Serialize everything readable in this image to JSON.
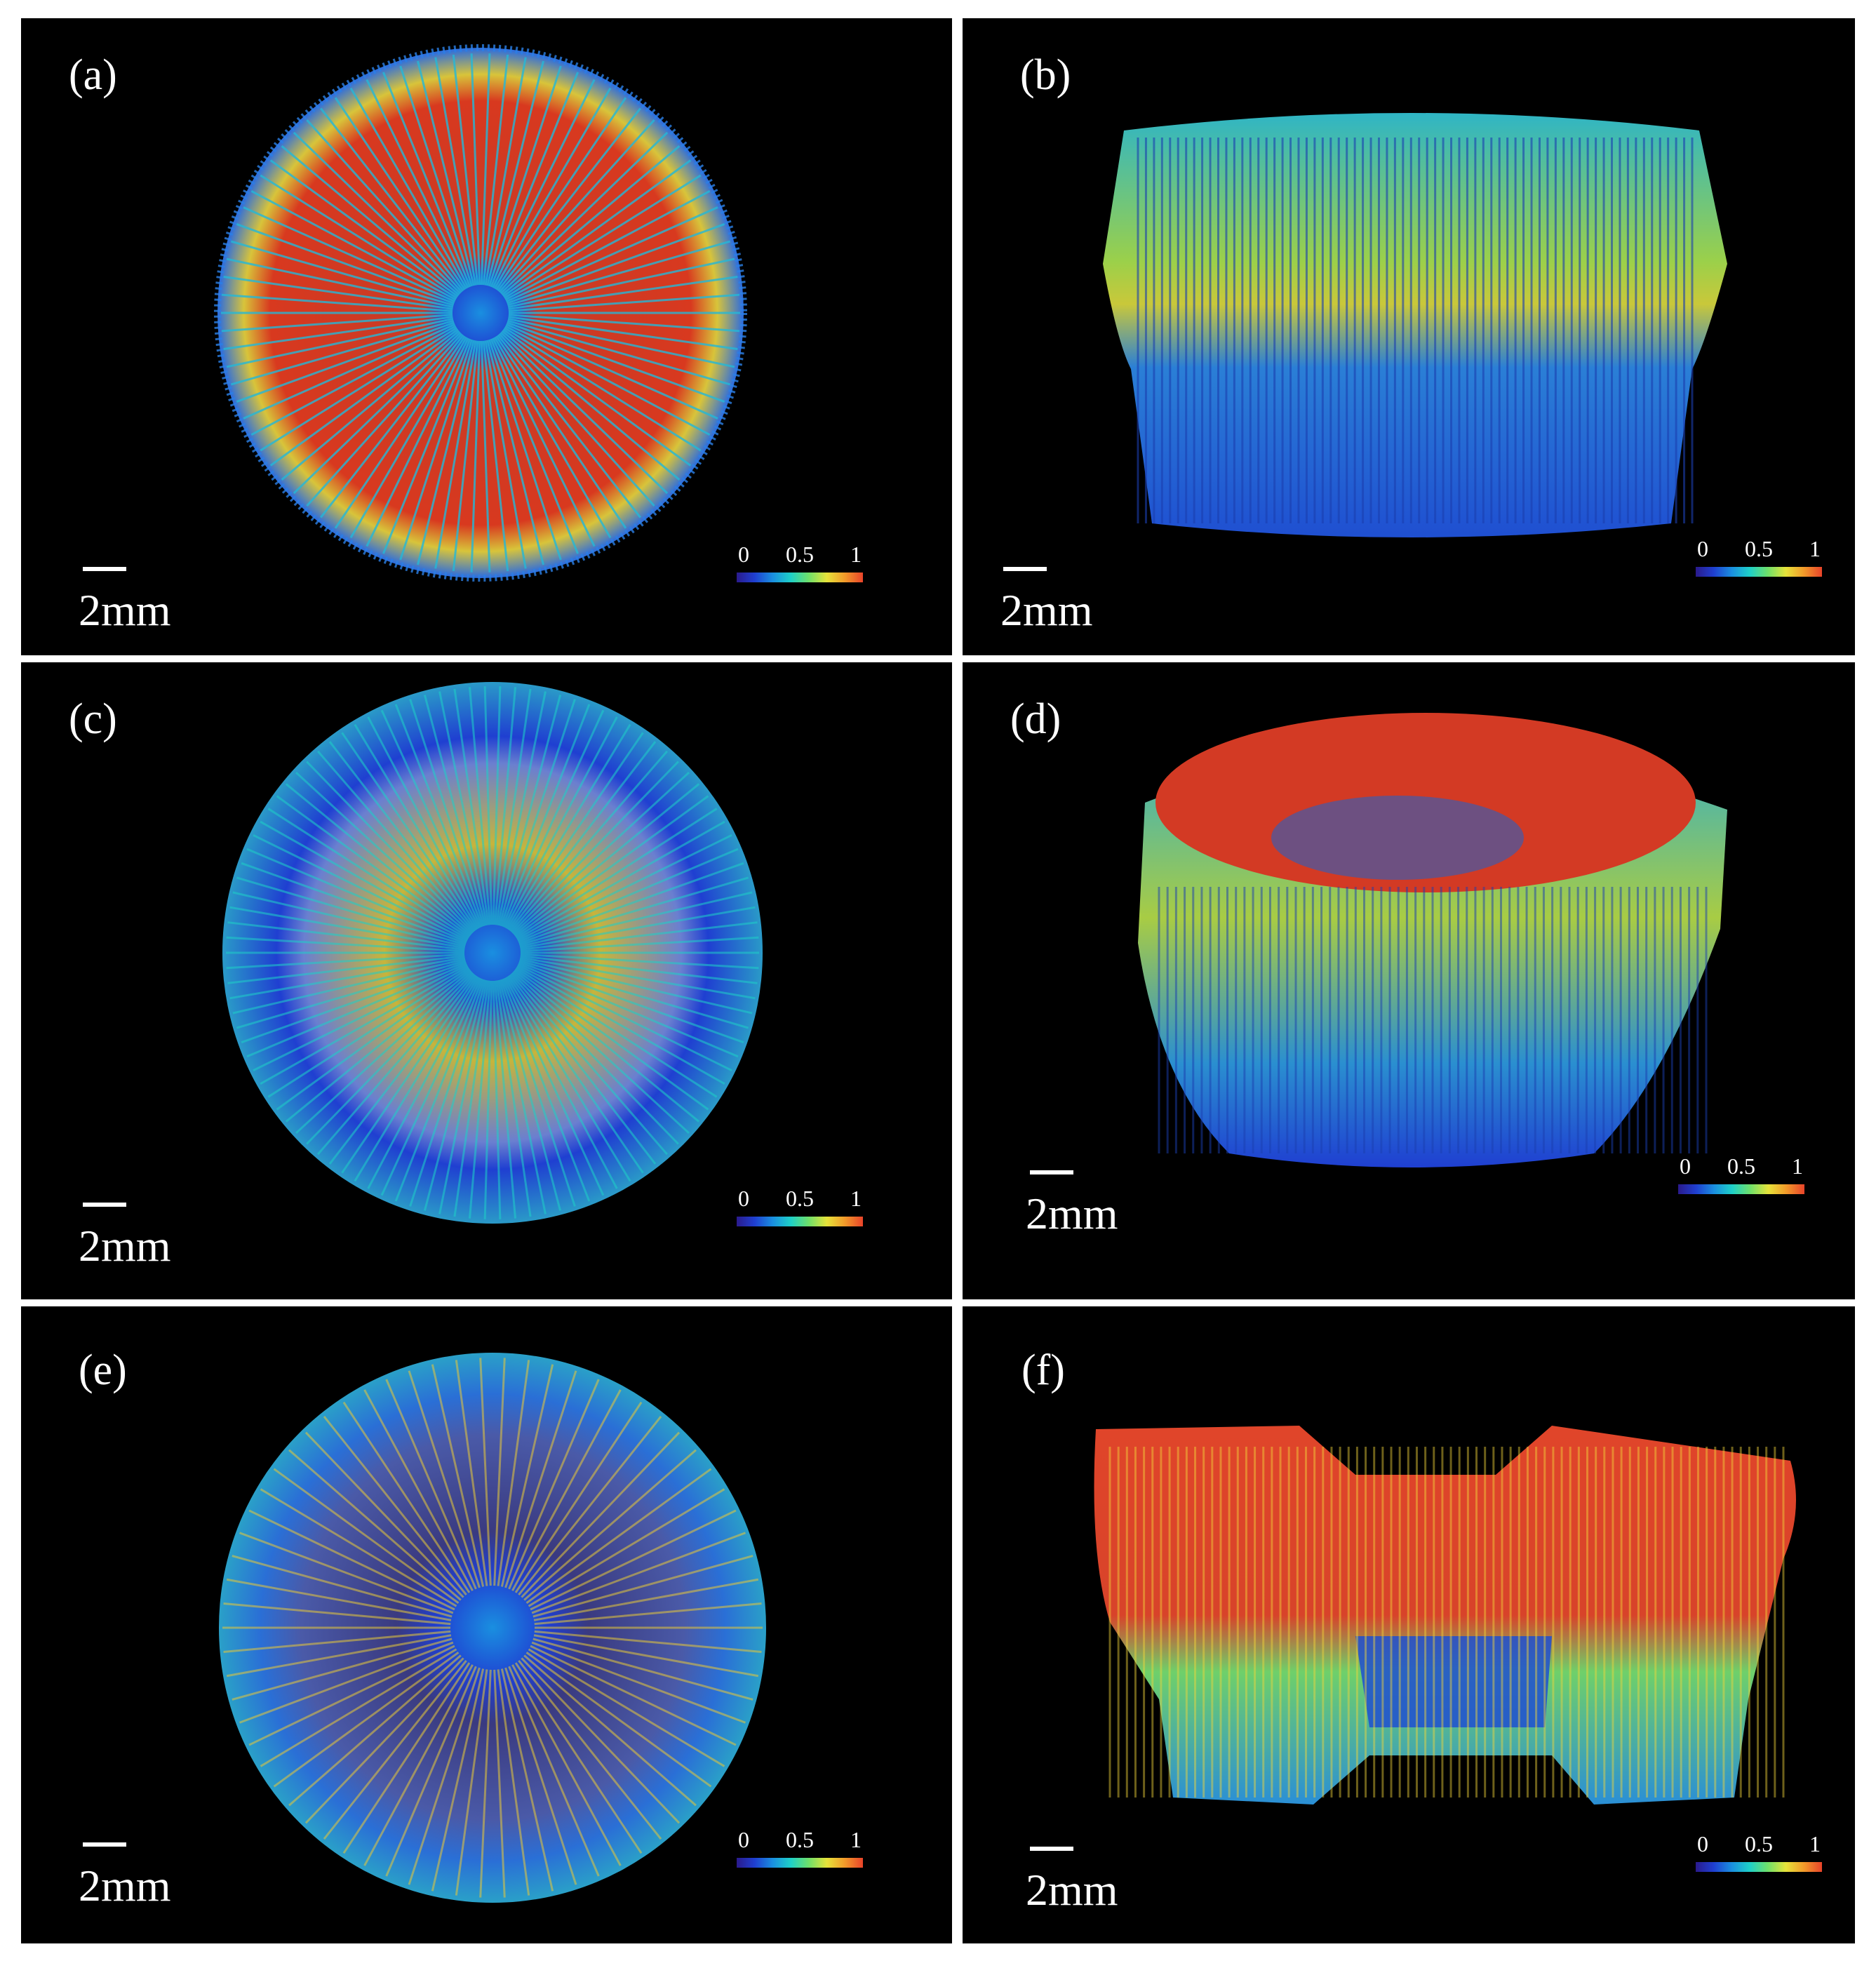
{
  "figure": {
    "background": "#000000",
    "colormap": [
      "#2a1a8c",
      "#1f3fd1",
      "#1a8fe0",
      "#1ed0c8",
      "#6fe06a",
      "#e6e33a",
      "#f29a2a",
      "#e8432a"
    ],
    "panels": [
      {
        "label": "(a)",
        "scale": "2mm",
        "ticks": [
          "0",
          "0.5",
          "1"
        ],
        "view": "top",
        "dominant": "red"
      },
      {
        "label": "(b)",
        "scale": "2mm",
        "ticks": [
          "0",
          "0.5",
          "1"
        ],
        "view": "side",
        "dominant": "green"
      },
      {
        "label": "(c)",
        "scale": "2mm",
        "ticks": [
          "0",
          "0.5",
          "1"
        ],
        "view": "top",
        "dominant": "blue"
      },
      {
        "label": "(d)",
        "scale": "2mm",
        "ticks": [
          "0",
          "0.5",
          "1"
        ],
        "view": "side-bowl",
        "dominant": "mixed"
      },
      {
        "label": "(e)",
        "scale": "2mm",
        "ticks": [
          "0",
          "0.5",
          "1"
        ],
        "view": "top",
        "dominant": "blue"
      },
      {
        "label": "(f)",
        "scale": "2mm",
        "ticks": [
          "0",
          "0.5",
          "1"
        ],
        "view": "side-waist",
        "dominant": "red"
      }
    ]
  }
}
